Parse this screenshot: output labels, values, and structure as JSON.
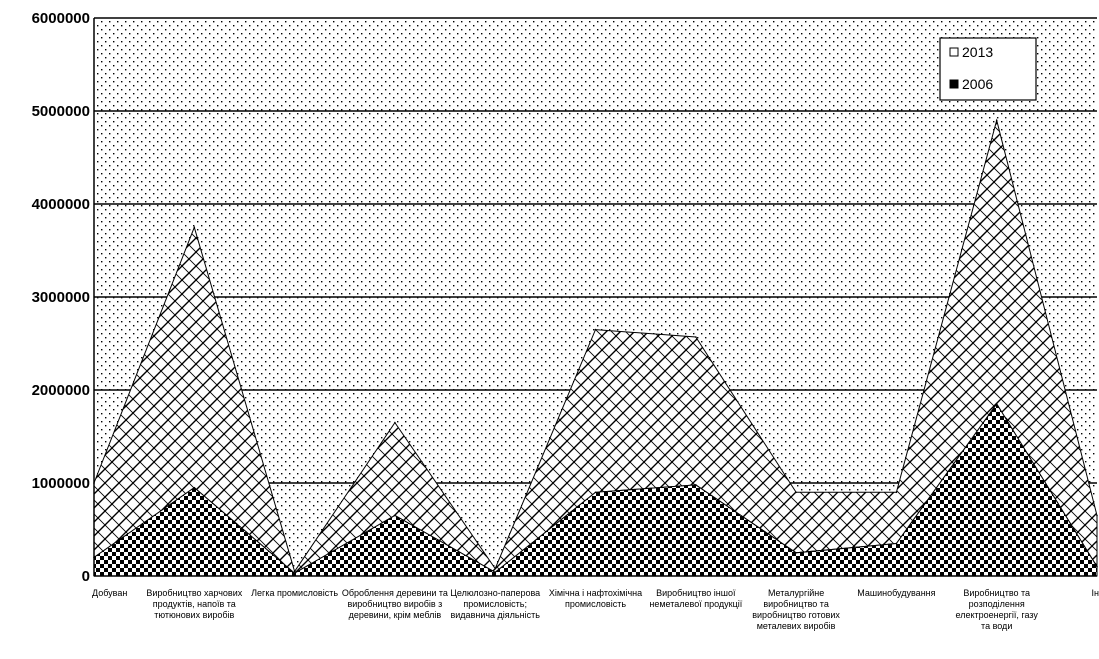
{
  "chart_data": {
    "type": "area",
    "stacked": true,
    "title": "",
    "xlabel": "",
    "ylabel": "",
    "ylim": [
      0,
      6000000
    ],
    "yticks": [
      0,
      1000000,
      2000000,
      3000000,
      4000000,
      5000000,
      6000000
    ],
    "ytick_labels": [
      "0",
      "1000000",
      "2000000",
      "3000000",
      "4000000",
      "5000000",
      "6000000"
    ],
    "grid": true,
    "legend_position": "top-right",
    "categories": [
      "Добуван",
      "Виробництво харчових продуктів, напоїв та тютюнових виробів",
      "Легка промисловість",
      "Оброблення деревини та виробництво виробів з деревини, крім меблів",
      "Целюлозно-паперова промисловість; видавнича діяльність",
      "Хімічна і нафтохімічна промисловість",
      "Виробництво іншої неметалевої продукції",
      "Металургійне виробництво та виробництво готових металевих виробів",
      "Машинобудування",
      "Виробництво та розподілення електроенергії, газу та води",
      "Ін"
    ],
    "series": [
      {
        "name": "2006",
        "pattern": "checker",
        "values": [
          200000,
          950000,
          30000,
          650000,
          40000,
          900000,
          980000,
          250000,
          350000,
          1850000,
          100000
        ]
      },
      {
        "name": "2013",
        "pattern": "diagonal",
        "values": [
          800000,
          2800000,
          20000,
          1000000,
          40000,
          1750000,
          1590000,
          650000,
          550000,
          3050000,
          550000
        ]
      }
    ],
    "legend": [
      {
        "label": "2013",
        "pattern": "plain"
      },
      {
        "label": "2006",
        "pattern": "solid"
      }
    ],
    "colors": {
      "background": "#ffffff",
      "ink": "#000000"
    }
  }
}
